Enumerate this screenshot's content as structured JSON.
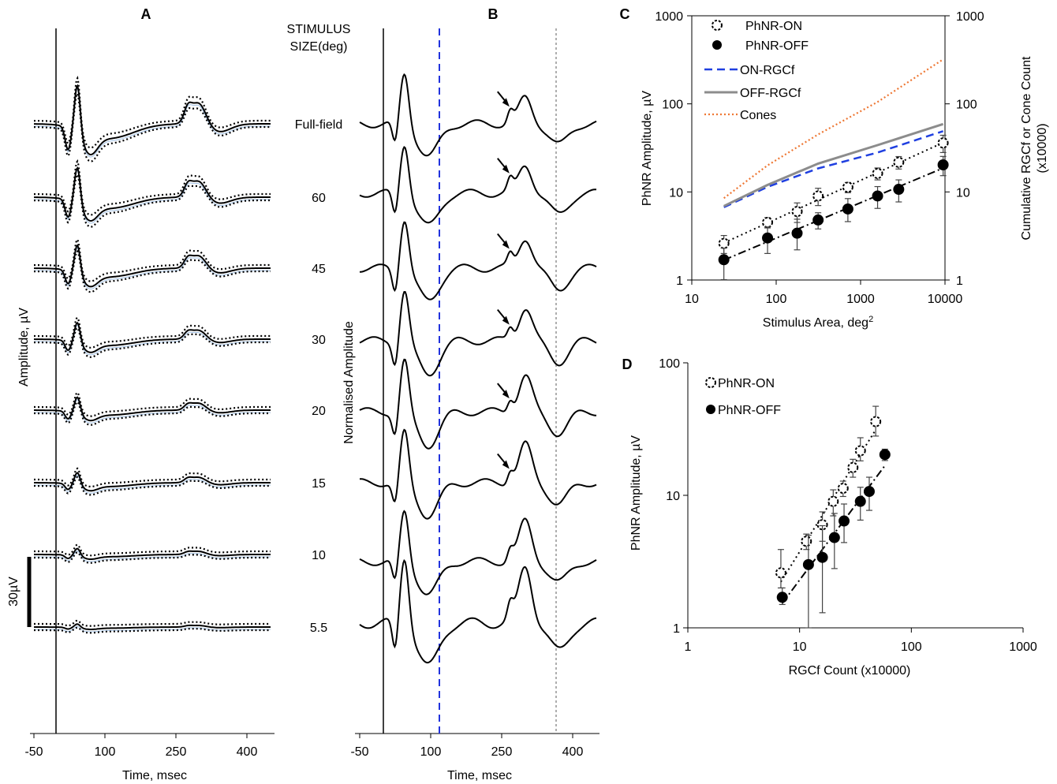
{
  "panels": {
    "A": {
      "letter": "A",
      "ylabel": "Amplitude, µV",
      "xlabel": "Time, msec",
      "xticks": [
        "-50",
        "100",
        "250",
        "400"
      ],
      "scale_bar": "30µV"
    },
    "B": {
      "letter": "B",
      "ylabel": "Normalised Amplitude",
      "xlabel": "Time, msec",
      "xticks": [
        "-50",
        "100",
        "250",
        "400"
      ]
    },
    "stimulus": {
      "header_line1": "STIMULUS",
      "header_line2": "SIZE(deg)",
      "sizes": [
        "Full-field",
        "60",
        "45",
        "30",
        "20",
        "15",
        "10",
        "5.5"
      ]
    },
    "C": {
      "letter": "C",
      "ylabel": "PhNR Amplitude, µV",
      "xlabel": "Stimulus Area, deg",
      "xlabel_sup": "2",
      "y2label_line1": "Cumulative RGCf or Cone Count",
      "y2label_line2": "(x10000)",
      "xticks": [
        "10",
        "100",
        "1000",
        "10000"
      ],
      "yticks": [
        "1",
        "10",
        "100",
        "1000"
      ],
      "y2ticks": [
        "1",
        "10",
        "100",
        "1000"
      ],
      "legend": [
        "PhNR-ON",
        "PhNR-OFF",
        "ON-RGCf",
        "OFF-RGCf",
        "Cones"
      ]
    },
    "D": {
      "letter": "D",
      "ylabel": "PhNR Amplitude, µV",
      "xlabel": "RGCf Count (x10000)",
      "xticks": [
        "1",
        "10",
        "100",
        "1000"
      ],
      "yticks": [
        "1",
        "10",
        "100"
      ],
      "legend": [
        "PhNR-ON",
        "PhNR-OFF"
      ]
    }
  },
  "colors": {
    "on_rgcf": "#1f3fe0",
    "off_rgcf": "#8c8c8c",
    "cones": "#ee7733",
    "vline_blue": "#2233dd"
  },
  "chart_data": [
    {
      "type": "line",
      "title": "",
      "xlabel": "Time, msec",
      "ylabel": "Amplitude, µV",
      "xlim": [
        -50,
        450
      ],
      "series_names": [
        "Full-field",
        "60",
        "45",
        "30",
        "20",
        "15",
        "10",
        "5.5"
      ],
      "scale": [
        1.3,
        1.0,
        0.78,
        0.56,
        0.44,
        0.34,
        0.2,
        0.1
      ]
    },
    {
      "type": "line",
      "title": "",
      "xlabel": "Time, msec",
      "ylabel": "Normalised Amplitude",
      "xlim": [
        -50,
        450
      ],
      "reference_lines_x": [
        115,
        370
      ]
    },
    {
      "type": "scatter",
      "title": "",
      "xlabel": "Stimulus Area, deg2",
      "ylabel": "PhNR Amplitude, µV",
      "xscale": "log",
      "yscale": "log",
      "xlim": [
        10,
        10000
      ],
      "ylim": [
        1,
        1000
      ],
      "legend_position": "top-left",
      "x": [
        24,
        79,
        177,
        314,
        707,
        1590,
        2830,
        9500
      ],
      "series": [
        {
          "name": "PhNR-ON",
          "values": [
            2.6,
            4.5,
            6.0,
            9.0,
            11.3,
            16.2,
            21.7,
            36.0
          ],
          "err_low": [
            0.6,
            0.6,
            1.5,
            2.0,
            1.5,
            2.5,
            3.5,
            8.0
          ],
          "err_high": [
            0.6,
            0.6,
            1.5,
            2.0,
            1.5,
            2.5,
            3.5,
            8.0
          ]
        },
        {
          "name": "PhNR-OFF",
          "values": [
            1.7,
            3.0,
            3.4,
            4.8,
            6.4,
            9.0,
            10.7,
            20.3
          ],
          "err_low": [
            0.7,
            1.0,
            1.2,
            1.0,
            1.8,
            2.5,
            3.0,
            5.0
          ],
          "err_high": [
            0.6,
            1.0,
            1.5,
            1.0,
            2.0,
            2.5,
            3.0,
            5.0
          ]
        },
        {
          "name": "ON-RGCf",
          "x": [
            24,
            79,
            314,
            1590,
            9500
          ],
          "values": [
            6.7,
            11.4,
            18.5,
            28.0,
            49.0
          ]
        },
        {
          "name": "OFF-RGCf",
          "x": [
            24,
            79,
            314,
            1590,
            9500
          ],
          "values": [
            6.9,
            12.0,
            21.0,
            34.0,
            59.0
          ]
        },
        {
          "name": "Cones",
          "x": [
            24,
            79,
            314,
            1590,
            9500
          ],
          "values": [
            8.5,
            20.0,
            45.0,
            105.0,
            320.0
          ]
        }
      ]
    },
    {
      "type": "scatter",
      "title": "",
      "xlabel": "RGCf Count (x10000)",
      "ylabel": "PhNR Amplitude, µV",
      "xscale": "log",
      "yscale": "log",
      "xlim": [
        1,
        1000
      ],
      "ylim": [
        1,
        100
      ],
      "legend_position": "top-left",
      "series": [
        {
          "name": "PhNR-ON",
          "x": [
            6.8,
            11.5,
            16.0,
            20.0,
            24.5,
            30.0,
            35.0,
            48.0
          ],
          "values": [
            2.6,
            4.5,
            6.0,
            9.0,
            11.3,
            16.2,
            21.7,
            36.0
          ],
          "err_low": [
            0.6,
            0.6,
            1.5,
            2.0,
            1.5,
            2.5,
            3.5,
            8.0
          ],
          "err_high": [
            1.3,
            0.6,
            1.5,
            2.0,
            1.5,
            2.5,
            5.5,
            11.0
          ]
        },
        {
          "name": "PhNR-OFF",
          "x": [
            7.0,
            12.0,
            16.0,
            20.5,
            25.0,
            35.0,
            42.0,
            58.0
          ],
          "values": [
            1.7,
            3.0,
            3.4,
            4.8,
            6.4,
            9.0,
            10.7,
            20.3
          ],
          "err_low": [
            0.2,
            2.2,
            2.1,
            2.0,
            2.0,
            2.5,
            3.0,
            2.0
          ],
          "err_high": [
            0.3,
            2.0,
            2.5,
            2.5,
            2.2,
            2.5,
            3.0,
            2.0
          ]
        }
      ]
    }
  ]
}
